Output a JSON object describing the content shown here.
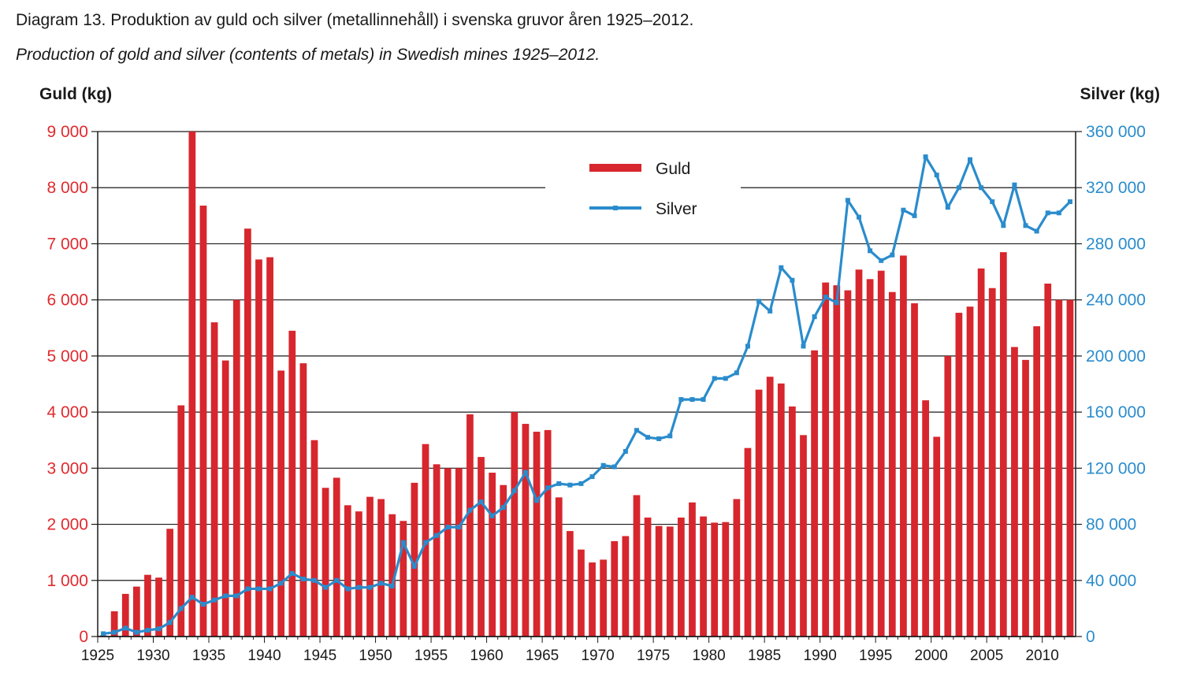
{
  "chart_data": {
    "type": "bar",
    "title": "Diagram 13. Produktion av guld och silver (metallinnehåll) i svenska gruvor åren 1925–2012.",
    "subtitle": "Production of gold and silver (contents of metals) in Swedish mines 1925–2012.",
    "ylabel_left": "Guld (kg)",
    "ylabel_right": "Silver (kg)",
    "ylim_left": [
      0,
      9000
    ],
    "ylim_right": [
      0,
      360000
    ],
    "xlim": [
      1925,
      2012
    ],
    "left_ticks": [
      "0",
      "1 000",
      "2 000",
      "3 000",
      "4 000",
      "5 000",
      "6 000",
      "7 000",
      "8 000",
      "9 000"
    ],
    "left_tick_values": [
      0,
      1000,
      2000,
      3000,
      4000,
      5000,
      6000,
      7000,
      8000,
      9000
    ],
    "right_ticks": [
      "0",
      "40 000",
      "80 000",
      "120 000",
      "160 000",
      "200 000",
      "240 000",
      "280 000",
      "320 000",
      "360 000"
    ],
    "right_tick_values": [
      0,
      40000,
      80000,
      120000,
      160000,
      200000,
      240000,
      280000,
      320000,
      360000
    ],
    "x_ticks": [
      "1925",
      "1930",
      "1935",
      "1940",
      "1945",
      "1950",
      "1955",
      "1960",
      "1965",
      "1970",
      "1975",
      "1980",
      "1985",
      "1990",
      "1995",
      "2000",
      "2005",
      "2010"
    ],
    "x_tick_values": [
      1925,
      1930,
      1935,
      1940,
      1945,
      1950,
      1955,
      1960,
      1965,
      1970,
      1975,
      1980,
      1985,
      1990,
      1995,
      2000,
      2005,
      2010
    ],
    "legend": {
      "guld": "Guld",
      "silver": "Silver",
      "position": "top-center"
    },
    "colors": {
      "guld": "#d7262d",
      "silver": "#2a8ccc",
      "left_axis": "#e02a2e",
      "right_axis": "#2a8ccc",
      "grid": "#1a1a1a"
    },
    "grid": true,
    "years": [
      1925,
      1926,
      1927,
      1928,
      1929,
      1930,
      1931,
      1932,
      1933,
      1934,
      1935,
      1936,
      1937,
      1938,
      1939,
      1940,
      1941,
      1942,
      1943,
      1944,
      1945,
      1946,
      1947,
      1948,
      1949,
      1950,
      1951,
      1952,
      1953,
      1954,
      1955,
      1956,
      1957,
      1958,
      1959,
      1960,
      1961,
      1962,
      1963,
      1964,
      1965,
      1966,
      1967,
      1968,
      1969,
      1970,
      1971,
      1972,
      1973,
      1974,
      1975,
      1976,
      1977,
      1978,
      1979,
      1980,
      1981,
      1982,
      1983,
      1984,
      1985,
      1986,
      1987,
      1988,
      1989,
      1990,
      1991,
      1992,
      1993,
      1994,
      1995,
      1996,
      1997,
      1998,
      1999,
      2000,
      2001,
      2002,
      2003,
      2004,
      2005,
      2006,
      2007,
      2008,
      2009,
      2010,
      2011,
      2012
    ],
    "series": [
      {
        "name": "Guld",
        "axis": "left",
        "type": "bar",
        "values": [
          20,
          450,
          760,
          890,
          1100,
          1050,
          1920,
          4120,
          9000,
          7680,
          5600,
          4920,
          6000,
          7270,
          6720,
          6760,
          4740,
          5450,
          4870,
          3500,
          2650,
          2830,
          2340,
          2230,
          2490,
          2450,
          2180,
          2060,
          2740,
          3430,
          3070,
          3000,
          3000,
          3960,
          3200,
          2920,
          2700,
          4000,
          3790,
          3650,
          3680,
          2480,
          1880,
          1550,
          1320,
          1370,
          1700,
          1790,
          2520,
          2120,
          1970,
          1960,
          2120,
          2390,
          2140,
          2030,
          2040,
          2450,
          3360,
          4400,
          4630,
          4510,
          4100,
          3590,
          5100,
          6310,
          6260,
          6170,
          6540,
          6370,
          6520,
          6140,
          6790,
          5940,
          4210,
          3560,
          5000,
          5770,
          5880,
          6560,
          6210,
          6850,
          5160,
          4930,
          5530,
          6290,
          6000,
          6000
        ]
      },
      {
        "name": "Silver",
        "axis": "right",
        "type": "line",
        "values": [
          2000,
          3000,
          6000,
          3000,
          4500,
          5500,
          10000,
          20000,
          28000,
          23000,
          26000,
          29000,
          29000,
          34000,
          34000,
          34000,
          38000,
          45000,
          41000,
          40000,
          35000,
          40000,
          34000,
          35000,
          35000,
          38000,
          36000,
          67000,
          50000,
          67000,
          72000,
          78000,
          78000,
          90000,
          96000,
          86000,
          92000,
          104000,
          117000,
          97000,
          106000,
          109000,
          108000,
          109000,
          114000,
          122000,
          121000,
          132000,
          147000,
          142000,
          141000,
          143000,
          169000,
          169000,
          169000,
          184000,
          184000,
          188000,
          207000,
          239000,
          232000,
          263000,
          254000,
          207000,
          228000,
          242000,
          238000,
          311000,
          299000,
          275000,
          268000,
          272000,
          304000,
          300000,
          342000,
          329000,
          306000,
          320000,
          340000,
          320000,
          310000,
          293000,
          322000,
          293000,
          289000,
          302000,
          302000,
          310000
        ]
      }
    ]
  }
}
